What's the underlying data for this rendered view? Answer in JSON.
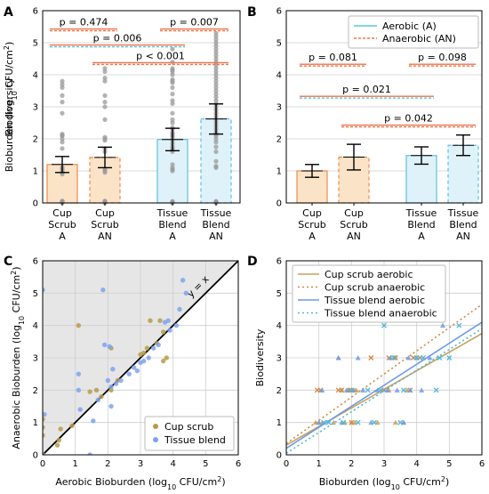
{
  "chart_data": [
    {
      "panel": "A",
      "type": "bar",
      "categories": [
        "Cup Scrub A",
        "Cup Scrub AN",
        "Tissue Blend A",
        "Tissue Blend AN"
      ],
      "category_lines": [
        [
          "Cup",
          "Scrub",
          "A"
        ],
        [
          "Cup",
          "Scrub",
          "AN"
        ],
        [
          "Tissue",
          "Blend",
          "A"
        ],
        [
          "Tissue",
          "Blend",
          "AN"
        ]
      ],
      "values": [
        1.2,
        1.42,
        1.98,
        2.62
      ],
      "errors": [
        0.25,
        0.32,
        0.35,
        0.47
      ],
      "ylabel": "Bioburden (log10 CFU/cm2)",
      "ylim": [
        0,
        6
      ],
      "yticks": [
        0,
        1,
        2,
        3,
        4,
        5,
        6
      ],
      "points": [
        [
          0,
          0.02,
          0.04,
          0.05,
          0.05,
          0.06,
          0.9,
          0.95,
          1.0,
          1.05,
          1.1,
          1.1,
          1.7,
          1.9,
          2.0,
          2.1,
          2.1,
          2.15,
          2.8,
          3.15,
          3.35,
          3.6,
          3.7,
          3.8
        ],
        [
          0,
          0.02,
          0.04,
          0.05,
          0.06,
          0.95,
          1.0,
          1.05,
          1.6,
          1.7,
          1.95,
          2.0,
          2.05,
          2.6,
          3.0,
          3.15,
          3.35,
          3.8,
          3.9,
          4.1,
          4.2
        ],
        [
          0,
          0.02,
          0.04,
          0.05,
          1.0,
          1.05,
          1.1,
          1.2,
          1.6,
          1.65,
          1.7,
          1.75,
          1.85,
          1.95,
          2.05,
          2.1,
          2.15,
          2.2,
          2.3,
          2.35,
          2.5,
          2.6,
          2.8,
          3.1,
          3.2,
          3.4,
          3.6,
          3.75,
          3.8,
          3.85,
          4.0,
          4.1,
          4.15,
          4.2,
          4.4,
          4.8
        ],
        [
          0,
          0.02,
          0.04,
          0.05,
          1.1,
          1.15,
          1.3,
          1.6,
          1.75,
          1.9,
          2.0,
          2.1,
          2.15,
          2.2,
          2.3,
          2.4,
          2.5,
          2.6,
          2.7,
          2.8,
          2.9,
          3.0,
          3.1,
          3.2,
          3.3,
          3.4,
          3.5,
          3.6,
          3.7,
          3.8,
          3.9,
          4.0,
          4.1,
          4.2,
          4.3,
          4.4,
          4.5,
          4.6,
          4.7,
          4.8,
          4.9,
          5.0,
          5.1,
          5.2,
          5.3
        ]
      ],
      "comparisons": [
        {
          "label": "p = 0.474",
          "from": 0,
          "to": 1,
          "y": 5.4
        },
        {
          "label": "p = 0.007",
          "from": 2,
          "to": 3,
          "y": 5.4
        },
        {
          "label": "p = 0.006",
          "from": 0,
          "to": 2,
          "y": 4.9
        },
        {
          "label": "p < 0.001",
          "from": 1,
          "to": 3,
          "y": 4.35
        }
      ]
    },
    {
      "panel": "B",
      "type": "bar",
      "categories": [
        "Cup Scrub A",
        "Cup Scrub AN",
        "Tissue Blend A",
        "Tissue Blend AN"
      ],
      "category_lines": [
        [
          "Cup",
          "Scrub",
          "A"
        ],
        [
          "Cup",
          "Scrub",
          "AN"
        ],
        [
          "Tissue",
          "Blend",
          "A"
        ],
        [
          "Tissue",
          "Blend",
          "AN"
        ]
      ],
      "values": [
        1.0,
        1.43,
        1.48,
        1.8
      ],
      "errors": [
        0.2,
        0.4,
        0.27,
        0.32
      ],
      "ylabel": "Biodiversity",
      "ylim": [
        0,
        6
      ],
      "yticks": [
        0,
        1,
        2,
        3,
        4,
        5,
        6
      ],
      "legend": [
        "Aerobic (A)",
        "Anaerobic (AN)"
      ],
      "comparisons": [
        {
          "label": "p = 0.081",
          "from": 0,
          "to": 1,
          "y": 4.3
        },
        {
          "label": "p = 0.098",
          "from": 2,
          "to": 3,
          "y": 4.3
        },
        {
          "label": "p = 0.021",
          "from": 0,
          "to": 2,
          "y": 3.3
        },
        {
          "label": "p = 0.042",
          "from": 1,
          "to": 3,
          "y": 2.4
        }
      ]
    },
    {
      "panel": "C",
      "type": "scatter",
      "xlabel": "Aerobic Bioburden (log10 CFU/cm2)",
      "ylabel": "Anaerobic Bioburden (log10 CFU/cm2)",
      "xlim": [
        0,
        6
      ],
      "ylim": [
        0,
        6
      ],
      "xticks": [
        0,
        1,
        2,
        3,
        4,
        5,
        6
      ],
      "yticks": [
        0,
        1,
        2,
        3,
        4,
        5,
        6
      ],
      "identity_label": "y = x",
      "series": [
        {
          "name": "Cup scrub",
          "x": [
            0,
            0,
            0,
            0.45,
            0.5,
            0.55,
            0.9,
            1.1,
            1.45,
            1.65,
            1.8,
            2.1,
            2.1,
            2.3,
            3.0,
            3.1,
            3.2,
            3.3,
            3.5,
            3.6,
            3.7,
            3.7,
            3.8
          ],
          "y": [
            0.6,
            0.85,
            1.1,
            0.3,
            0.45,
            0.8,
            0.9,
            4.0,
            1.95,
            2.0,
            1.8,
            2.0,
            3.3,
            2.3,
            3.1,
            3.15,
            3.3,
            4.15,
            3.45,
            4.15,
            3.8,
            2.9,
            3.0
          ]
        },
        {
          "name": "Tissue blend",
          "x": [
            0,
            0,
            0.05,
            1.1,
            1.1,
            1.15,
            1.45,
            1.55,
            1.7,
            1.85,
            1.9,
            2.0,
            2.05,
            2.1,
            2.1,
            2.15,
            2.25,
            2.4,
            2.65,
            2.8,
            2.9,
            3.0,
            3.1,
            3.25,
            3.4,
            3.55,
            3.75,
            3.85,
            3.9,
            4.1,
            4.2,
            4.3,
            4.4
          ],
          "y": [
            0,
            5.1,
            1.25,
            2.5,
            2.0,
            1.4,
            0,
            1.05,
            1.7,
            5.1,
            3.4,
            2.3,
            3.35,
            2.1,
            1.5,
            2.65,
            2.2,
            2.3,
            2.5,
            2.7,
            2.6,
            2.85,
            2.9,
            3.0,
            3.3,
            3.4,
            4.1,
            4.15,
            3.85,
            4.0,
            4.5,
            5.4,
            5.0
          ]
        }
      ]
    },
    {
      "panel": "D",
      "type": "scatter",
      "xlabel": "Bioburden (log10 CFU/cm2)",
      "ylabel": "Biodiversity",
      "xlim": [
        0,
        6
      ],
      "ylim": [
        0,
        6
      ],
      "xticks": [
        0,
        1,
        2,
        3,
        4,
        5,
        6
      ],
      "yticks": [
        0,
        1,
        2,
        3,
        4,
        5,
        6
      ],
      "series": [
        {
          "name": "Cup scrub aerobic",
          "color": "#c8a15a",
          "line": [
            0.3,
            3.75
          ],
          "x": [
            0.9,
            1.0,
            1.1,
            1.45,
            1.6,
            1.8,
            2.0,
            2.1,
            2.1,
            2.8,
            3.15,
            3.35,
            3.6,
            3.7,
            1.7,
            1.9,
            2.0,
            2.15
          ],
          "y": [
            1,
            1,
            1,
            1,
            3,
            1,
            2,
            2,
            1,
            1,
            2,
            1,
            1,
            2,
            2,
            2,
            1,
            2
          ]
        },
        {
          "name": "Cup scrub anaerobic",
          "color": "#cf8a45",
          "line": [
            0.35,
            4.65
          ],
          "x": [
            0.95,
            1.05,
            1.6,
            1.7,
            1.95,
            2.0,
            2.6,
            3.0,
            3.15,
            3.35,
            3.8,
            3.9,
            4.1
          ],
          "y": [
            2,
            2,
            2,
            2,
            2,
            1,
            3,
            2,
            3,
            3,
            2,
            3,
            3
          ]
        },
        {
          "name": "Tissue blend aerobic",
          "color": "#6f9ae8",
          "line": [
            0.2,
            4.1
          ],
          "x": [
            1.0,
            1.1,
            1.6,
            1.7,
            1.85,
            2.05,
            2.2,
            2.35,
            2.6,
            2.8,
            3.1,
            3.2,
            3.4,
            3.6,
            3.75,
            3.8,
            4.0,
            4.15,
            4.4,
            4.8
          ],
          "y": [
            1,
            2,
            3,
            1,
            2,
            2,
            3,
            2,
            1,
            2,
            2,
            3,
            2,
            1,
            3,
            2,
            3,
            2,
            3,
            4
          ]
        },
        {
          "name": "Tissue blend anaerobic",
          "color": "#4fb8d8",
          "line": [
            0.05,
            3.9
          ],
          "x": [
            1.15,
            1.3,
            1.75,
            2.0,
            2.2,
            2.5,
            2.9,
            3.0,
            3.3,
            3.6,
            4.0,
            4.2,
            4.6,
            4.7,
            5.0,
            5.3,
            3.5,
            2.7
          ],
          "y": [
            1,
            1,
            1,
            2,
            1,
            2,
            2,
            4,
            3,
            2,
            3,
            3,
            2,
            3,
            3,
            4,
            1,
            1
          ]
        }
      ]
    }
  ]
}
